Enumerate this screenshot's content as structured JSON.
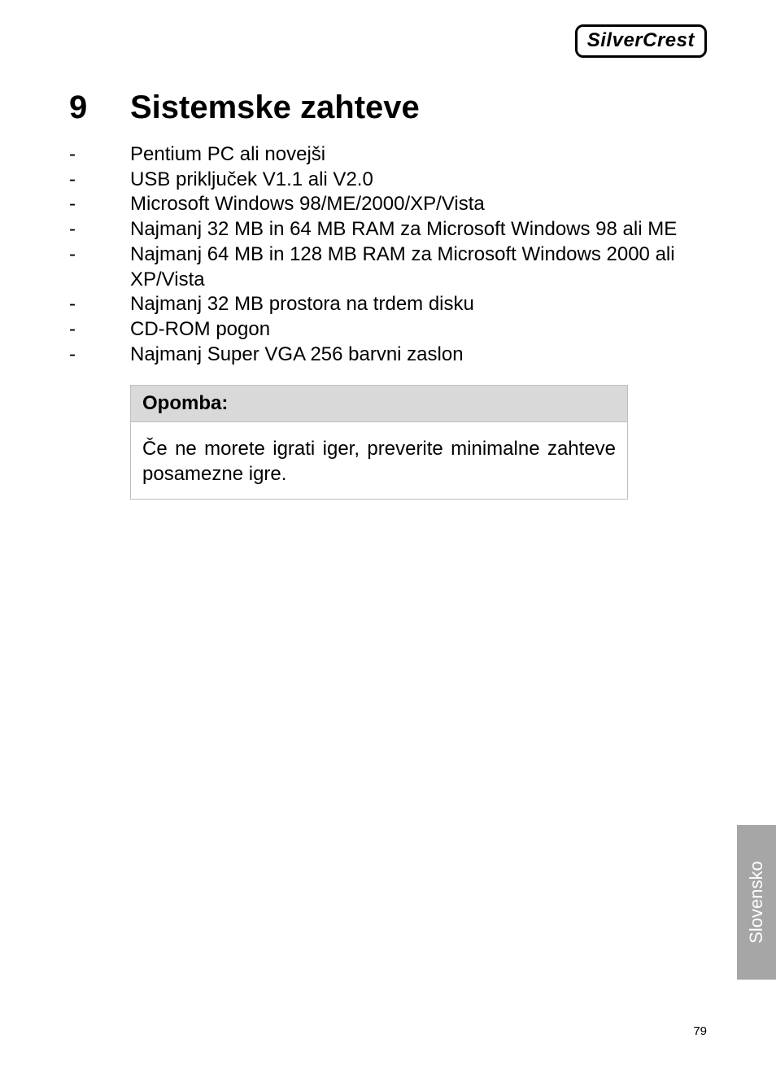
{
  "logo": {
    "text": "SilverCrest"
  },
  "heading": {
    "number": "9",
    "title": "Sistemske zahteve"
  },
  "requirements": {
    "bullet": "-",
    "items": [
      "Pentium PC ali novejši",
      "USB priključek V1.1 ali V2.0",
      "Microsoft Windows 98/ME/2000/XP/Vista",
      "Najmanj 32 MB in 64 MB RAM za Microsoft Windows 98 ali ME",
      "Najmanj 64 MB in 128 MB RAM za Microsoft Windows 2000 ali XP/Vista",
      "Najmanj 32 MB prostora na trdem disku",
      "CD-ROM pogon",
      "Najmanj Super VGA 256 barvni zaslon"
    ]
  },
  "note": {
    "heading": "Opomba:",
    "body": "Če ne morete igrati iger, preverite minimalne zahteve posamezne igre."
  },
  "side_tab": {
    "label": "Slovensko"
  },
  "page_number": "79",
  "colors": {
    "background": "#ffffff",
    "text": "#000000",
    "note_header_bg": "#d9d9d9",
    "note_border": "#bfbfbf",
    "side_tab_bg": "#a6a6a6",
    "side_tab_text": "#ffffff"
  }
}
